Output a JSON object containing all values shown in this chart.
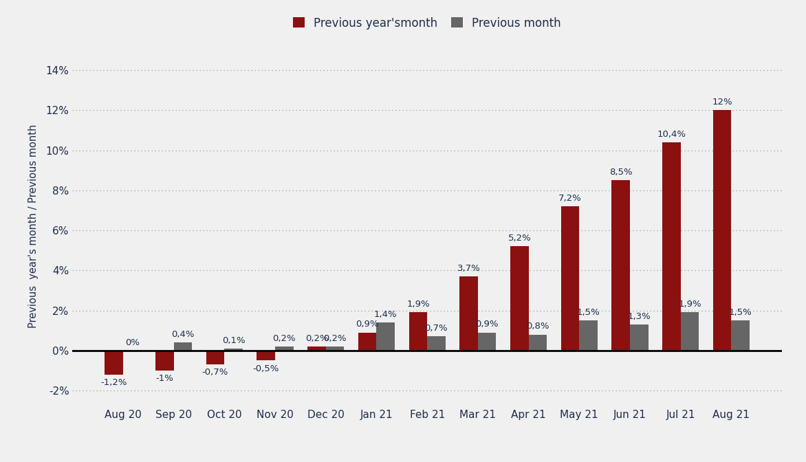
{
  "categories": [
    "Aug 20",
    "Sep 20",
    "Oct 20",
    "Nov 20",
    "Dec 20",
    "Jan 21",
    "Feb 21",
    "Mar 21",
    "Apr 21",
    "May 21",
    "Jun 21",
    "Jul 21",
    "Aug 21"
  ],
  "prev_year": [
    -1.2,
    -1.0,
    -0.7,
    -0.5,
    0.2,
    0.9,
    1.9,
    3.7,
    5.2,
    7.2,
    8.5,
    10.4,
    12.0
  ],
  "prev_month": [
    0.0,
    0.4,
    0.1,
    0.2,
    0.2,
    1.4,
    0.7,
    0.9,
    0.8,
    1.5,
    1.3,
    1.9,
    1.5
  ],
  "prev_year_labels": [
    "-1,2%",
    "-1%",
    "-0,7%",
    "-0,5%",
    "0,2%",
    "0,9%",
    "1,9%",
    "3,7%",
    "5,2%",
    "7,2%",
    "8,5%",
    "10,4%",
    "12%"
  ],
  "prev_month_labels": [
    "0%",
    "0,4%",
    "0,1%",
    "0,2%",
    "0,2%",
    "1,4%",
    "0,7%",
    "0,9%",
    "0,8%",
    "1,5%",
    "1,3%",
    "1,9%",
    "1,5%"
  ],
  "bar_color_year": "#8B1010",
  "bar_color_month": "#666666",
  "background_color": "#f0f0f0",
  "ylabel": "Previous  year's month / Previous month",
  "legend_year": "Previous year'smonth",
  "legend_month": "Previous month",
  "ylim_min": -2.8,
  "ylim_max": 15.2,
  "yticks": [
    -2,
    0,
    2,
    4,
    6,
    8,
    10,
    12,
    14
  ],
  "ytick_labels": [
    "-2%",
    "0%",
    "2%",
    "4%",
    "6%",
    "8%",
    "10%",
    "12%",
    "14%"
  ],
  "bar_width": 0.36,
  "label_fontsize": 9.5,
  "tick_fontsize": 11,
  "ylabel_fontsize": 10.5,
  "legend_fontsize": 12,
  "text_color": "#1e2d4a"
}
